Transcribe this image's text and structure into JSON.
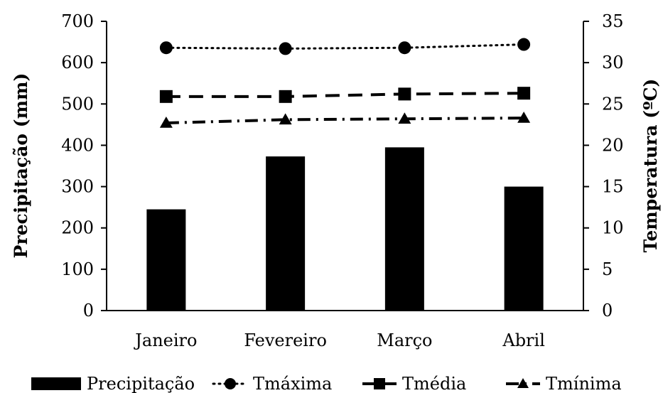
{
  "chart_data": {
    "type": "bar",
    "categories": [
      "Janeiro",
      "Fevereiro",
      "Março",
      "Abril"
    ],
    "ylabel": "Precipitação (mm)",
    "y2label": "Temperatura (ºC)",
    "ylim": [
      0,
      700
    ],
    "y2lim": [
      0,
      35
    ],
    "yticks": [
      "0",
      "100",
      "200",
      "300",
      "400",
      "500",
      "600",
      "700"
    ],
    "y2ticks": [
      "0",
      "5",
      "10",
      "15",
      "20",
      "25",
      "30",
      "35"
    ],
    "grid": false,
    "legend_position": "bottom",
    "bars": {
      "name": "Precipitação",
      "values": [
        245,
        373,
        395,
        300
      ],
      "color": "#000000"
    },
    "lines": [
      {
        "name": "Tmáxima",
        "values": [
          31.8,
          31.7,
          31.8,
          32.2
        ],
        "marker": "circle",
        "dash": "dotted",
        "color": "#000000"
      },
      {
        "name": "Tmédia",
        "values": [
          25.9,
          25.9,
          26.2,
          26.3
        ],
        "marker": "square",
        "dash": "dashed",
        "color": "#000000"
      },
      {
        "name": "Tmínima",
        "values": [
          22.7,
          23.1,
          23.2,
          23.3
        ],
        "marker": "triangle",
        "dash": "dash-dot",
        "color": "#000000"
      }
    ]
  }
}
